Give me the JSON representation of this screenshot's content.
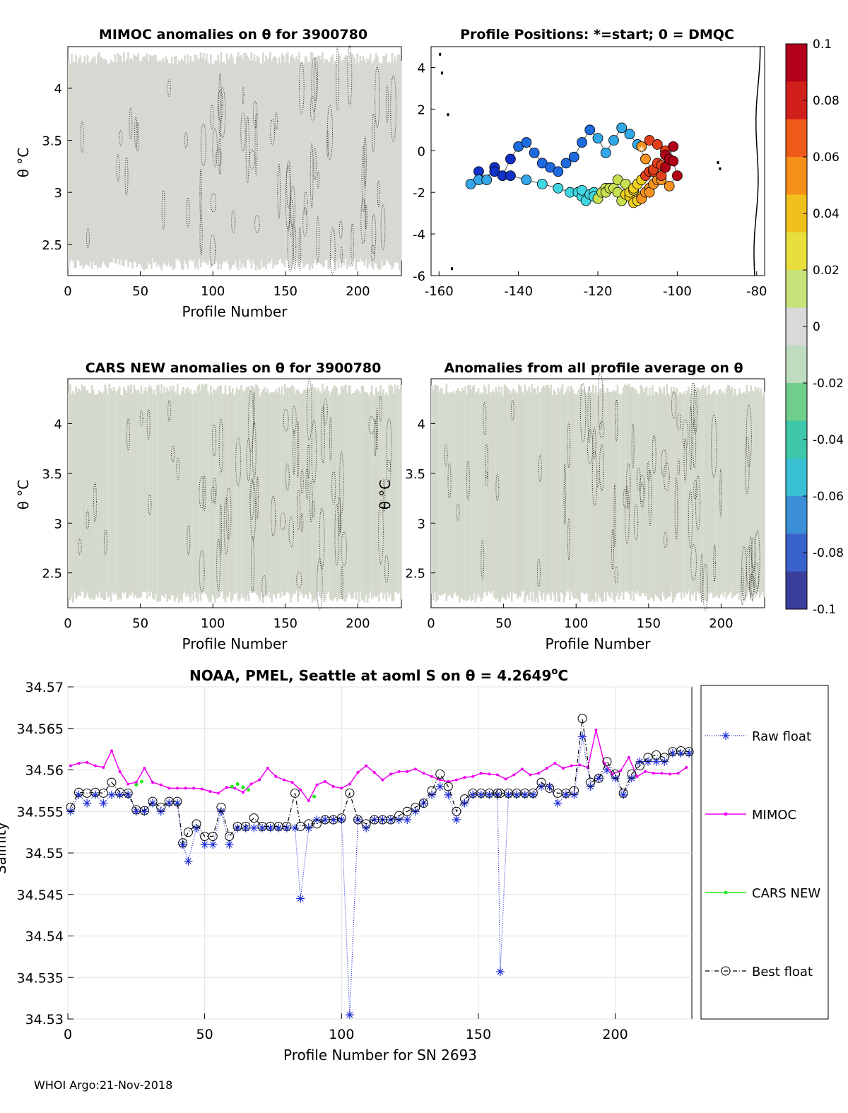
{
  "footer": "WHOI Argo:21-Nov-2018",
  "panels": {
    "mimoc_anom": {
      "title": "MIMOC anomalies on θ  for 3900780",
      "ylabel": "θ °C",
      "xlabel": "Profile Number",
      "xlim": [
        0,
        230
      ],
      "ylim": [
        2.2,
        4.4
      ],
      "xticks": [
        "0",
        "50",
        "100",
        "150",
        "200"
      ],
      "yticks": [
        "2.5",
        "3",
        "3.5",
        "4"
      ]
    },
    "positions": {
      "title": "Profile Positions: *=start; 0 = DMQC",
      "xlim": [
        -162,
        -78
      ],
      "ylim": [
        -6,
        5
      ],
      "xticks": [
        "-160",
        "-140",
        "-120",
        "-100",
        "-80"
      ],
      "yticks": [
        "-6",
        "-4",
        "-2",
        "0",
        "2",
        "4"
      ]
    },
    "cars_anom": {
      "title": "CARS NEW anomalies on θ for 3900780",
      "ylabel": "θ °C",
      "xlabel": "Profile Number",
      "xlim": [
        0,
        230
      ],
      "ylim": [
        2.15,
        4.45
      ],
      "xticks": [
        "0",
        "50",
        "100",
        "150",
        "200"
      ],
      "yticks": [
        "2.5",
        "3",
        "3.5",
        "4"
      ]
    },
    "all_avg_anom": {
      "title": "Anomalies from all profile average on θ",
      "ylabel": "θ °C",
      "xlabel": "Profile Number",
      "xlim": [
        0,
        230
      ],
      "ylim": [
        2.15,
        4.45
      ],
      "xticks": [
        "0",
        "50",
        "100",
        "150",
        "200"
      ],
      "yticks": [
        "2.5",
        "3",
        "3.5",
        "4"
      ]
    }
  },
  "colorbar": {
    "ticks": [
      "0.1",
      "0.08",
      "0.06",
      "0.04",
      "0.02",
      "0",
      "-0.02",
      "-0.04",
      "-0.06",
      "-0.08",
      "-0.1"
    ],
    "colors": [
      "#b2001b",
      "#d11f1c",
      "#ee5a17",
      "#f68f17",
      "#f0c11c",
      "#e8df3c",
      "#c8e27a",
      "#d9d9d9",
      "#bfdcc0",
      "#6fcf8a",
      "#3ec7a9",
      "#39c0d4",
      "#3a8fd6",
      "#3a62cc",
      "#3b3f9c"
    ]
  },
  "chart_data": [
    {
      "type": "heatmap",
      "title": "MIMOC anomalies on θ  for 3900780",
      "xlabel": "Profile Number",
      "ylabel": "θ °C",
      "xlim": [
        0,
        230
      ],
      "ylim": [
        2.2,
        4.4
      ],
      "note_values": "near-zero anomalies (grey) with dotted contours"
    },
    {
      "type": "scatter",
      "title": "Profile Positions: *=start; 0 = DMQC",
      "xlim": [
        -162,
        -78
      ],
      "ylim": [
        -6,
        5
      ],
      "x": [
        -109,
        -107,
        -105,
        -103,
        -101,
        -100,
        -102,
        -104,
        -106,
        -108,
        -110,
        -112,
        -114,
        -116,
        -118,
        -120,
        -122,
        -124,
        -126,
        -128,
        -130,
        -132,
        -134,
        -136,
        -138,
        -140,
        -142,
        -144,
        -146,
        -148,
        -150,
        -152,
        -150,
        -146,
        -142,
        -138,
        -134,
        -130,
        -127,
        -124,
        -121,
        -118,
        -115,
        -112,
        -110,
        -108,
        -106,
        -104,
        -103,
        -105,
        -107,
        -109,
        -111,
        -113,
        -115,
        -117,
        -119,
        -121,
        -123,
        -125,
        -124,
        -122,
        -120,
        -118,
        -116,
        -114,
        -112,
        -110,
        -108,
        -106,
        -104,
        -102,
        -101,
        -103,
        -105,
        -107,
        -109,
        -111,
        -113,
        -111,
        -109,
        -107
      ],
      "y": [
        0.2,
        0.5,
        0.3,
        0.0,
        -0.5,
        -1.2,
        -1.7,
        -1.4,
        -1.0,
        -0.4,
        0.3,
        0.8,
        1.1,
        0.5,
        -0.1,
        0.6,
        1.0,
        0.4,
        -0.3,
        -0.6,
        -1.0,
        -0.8,
        -0.6,
        -0.1,
        0.4,
        0.2,
        -0.4,
        -1.2,
        -0.8,
        -1.4,
        -1.0,
        -1.6,
        -1.4,
        -1.0,
        -1.2,
        -1.4,
        -1.6,
        -1.8,
        -2.0,
        -2.2,
        -2.0,
        -1.8,
        -2.0,
        -2.2,
        -2.4,
        -2.0,
        -1.6,
        -1.2,
        -0.8,
        -1.4,
        -1.8,
        -2.2,
        -1.9,
        -1.6,
        -1.4,
        -1.8,
        -2.0,
        -2.2,
        -2.4,
        -2.0,
        -1.9,
        -2.1,
        -2.3,
        -2.0,
        -1.8,
        -2.4,
        -2.0,
        -1.6,
        -1.2,
        -0.9,
        -0.7,
        -0.4,
        0.2,
        -0.2,
        -0.6,
        -1.0,
        -1.4,
        -1.8,
        -2.1,
        -2.5,
        -2.3,
        -2.0
      ],
      "color_by": "profile order, blue → cyan → yellow → red"
    },
    {
      "type": "heatmap",
      "title": "CARS NEW anomalies on θ for 3900780",
      "xlabel": "Profile Number",
      "ylabel": "θ °C",
      "xlim": [
        0,
        230
      ],
      "ylim": [
        2.15,
        4.45
      ]
    },
    {
      "type": "heatmap",
      "title": "Anomalies from all profile average on θ",
      "xlabel": "Profile Number",
      "ylabel": "θ °C",
      "xlim": [
        0,
        230
      ],
      "ylim": [
        2.15,
        4.45
      ]
    },
    {
      "type": "line",
      "title": "NOAA, PMEL, Seattle at aoml S on θ = 4.2649°C",
      "xlabel": "Profile Number for SN 2693",
      "ylabel": "Salinity",
      "xlim": [
        0,
        228
      ],
      "ylim": [
        34.53,
        34.57
      ],
      "xticks": [
        "0",
        "50",
        "100",
        "150",
        "200"
      ],
      "yticks": [
        "34.53",
        "34.535",
        "34.54",
        "34.545",
        "34.55",
        "34.555",
        "34.56",
        "34.565",
        "34.57"
      ],
      "grid": true,
      "legend_position": "right-outside",
      "series": [
        {
          "name": "Raw float",
          "color": "#1f2fd6",
          "x": [
            1,
            4,
            7,
            10,
            13,
            16,
            19,
            22,
            25,
            28,
            31,
            34,
            37,
            40,
            42,
            44,
            47,
            50,
            53,
            56,
            59,
            62,
            65,
            68,
            71,
            74,
            77,
            80,
            83,
            85,
            88,
            91,
            94,
            97,
            100,
            103,
            106,
            109,
            112,
            115,
            118,
            121,
            124,
            127,
            130,
            133,
            136,
            139,
            142,
            145,
            148,
            151,
            154,
            157,
            158,
            161,
            164,
            167,
            170,
            173,
            176,
            179,
            182,
            185,
            188,
            191,
            194,
            197,
            200,
            203,
            206,
            209,
            212,
            215,
            218,
            221,
            224,
            227
          ],
          "y": [
            34.555,
            34.557,
            34.556,
            34.557,
            34.556,
            34.557,
            34.557,
            34.557,
            34.555,
            34.555,
            34.556,
            34.555,
            34.556,
            34.556,
            34.551,
            34.549,
            34.553,
            34.551,
            34.551,
            34.555,
            34.551,
            34.553,
            34.553,
            34.553,
            34.553,
            34.553,
            34.553,
            34.553,
            34.553,
            34.5445,
            34.553,
            34.554,
            34.554,
            34.554,
            34.554,
            34.5305,
            34.554,
            34.553,
            34.554,
            34.554,
            34.554,
            34.554,
            34.554,
            34.555,
            34.556,
            34.557,
            34.558,
            34.557,
            34.554,
            34.556,
            34.557,
            34.557,
            34.557,
            34.557,
            34.5357,
            34.557,
            34.557,
            34.557,
            34.557,
            34.558,
            34.558,
            34.556,
            34.557,
            34.557,
            34.564,
            34.558,
            34.559,
            34.56,
            34.559,
            34.557,
            34.559,
            34.561,
            34.561,
            34.561,
            34.561,
            34.562,
            34.562,
            34.562
          ]
        },
        {
          "name": "MIMOC",
          "color": "#f000f0",
          "x": [
            1,
            4,
            7,
            10,
            13,
            16,
            19,
            22,
            25,
            28,
            31,
            34,
            37,
            40,
            43,
            46,
            49,
            52,
            55,
            58,
            61,
            64,
            67,
            70,
            73,
            76,
            79,
            82,
            85,
            88,
            91,
            94,
            97,
            100,
            103,
            106,
            109,
            112,
            115,
            118,
            121,
            124,
            127,
            130,
            133,
            136,
            139,
            142,
            145,
            148,
            151,
            154,
            157,
            160,
            163,
            166,
            169,
            172,
            175,
            178,
            181,
            184,
            187,
            190,
            193,
            196,
            199,
            202,
            205,
            208,
            211,
            214,
            217,
            220,
            223,
            226
          ],
          "y": [
            34.5605,
            34.5608,
            34.5609,
            34.5605,
            34.5603,
            34.5623,
            34.5598,
            34.5583,
            34.5585,
            34.5602,
            34.5585,
            34.5582,
            34.5578,
            34.5578,
            34.5578,
            34.5578,
            34.5577,
            34.5574,
            34.5572,
            34.5579,
            34.5578,
            34.5573,
            34.5583,
            34.5588,
            34.5602,
            34.5592,
            34.5588,
            34.5585,
            34.5576,
            34.5563,
            34.5582,
            34.5586,
            34.558,
            34.5578,
            34.5583,
            34.5597,
            34.5605,
            34.5597,
            34.5588,
            34.5595,
            34.5598,
            34.5598,
            34.5601,
            34.5596,
            34.5592,
            34.5588,
            34.5586,
            34.5588,
            34.5591,
            34.5592,
            34.5596,
            34.5595,
            34.5594,
            34.5589,
            34.5594,
            34.5601,
            34.5594,
            34.5596,
            34.5602,
            34.5608,
            34.5602,
            34.5605,
            34.5606,
            34.5603,
            34.5648,
            34.5608,
            34.5595,
            34.5599,
            34.5615,
            34.5592,
            34.5598,
            34.5596,
            34.5596,
            34.5595,
            34.5596,
            34.5603
          ]
        },
        {
          "name": "CARS NEW",
          "color": "#22e822",
          "x": [
            25,
            27,
            60,
            62,
            64,
            66,
            90
          ],
          "y": [
            34.5582,
            34.5586,
            34.558,
            34.5583,
            34.5579,
            34.5576,
            34.5568
          ]
        },
        {
          "name": "Best float",
          "color": "#000000",
          "x": [
            1,
            4,
            7,
            10,
            13,
            16,
            19,
            22,
            25,
            28,
            31,
            34,
            37,
            40,
            42,
            44,
            47,
            50,
            53,
            56,
            59,
            62,
            65,
            68,
            71,
            74,
            77,
            80,
            83,
            85,
            88,
            91,
            94,
            97,
            100,
            103,
            106,
            109,
            112,
            115,
            118,
            121,
            124,
            127,
            130,
            133,
            136,
            139,
            142,
            145,
            148,
            151,
            154,
            157,
            158,
            161,
            164,
            167,
            170,
            173,
            176,
            179,
            182,
            185,
            188,
            191,
            194,
            197,
            200,
            203,
            206,
            209,
            212,
            215,
            218,
            221,
            224,
            227
          ],
          "y": [
            34.5555,
            34.5573,
            34.5572,
            34.5573,
            34.5572,
            34.5585,
            34.5573,
            34.5572,
            34.5552,
            34.5551,
            34.5562,
            34.5555,
            34.5562,
            34.5562,
            34.5512,
            34.5525,
            34.5535,
            34.552,
            34.552,
            34.5555,
            34.552,
            34.5532,
            34.5532,
            34.5542,
            34.5532,
            34.5532,
            34.5532,
            34.5532,
            34.5572,
            34.5532,
            34.5535,
            34.5535,
            34.554,
            34.554,
            34.5542,
            34.5572,
            34.554,
            34.5535,
            34.554,
            34.554,
            34.554,
            34.5545,
            34.555,
            34.5555,
            34.556,
            34.5575,
            34.5595,
            34.558,
            34.555,
            34.5565,
            34.5572,
            34.5572,
            34.5572,
            34.5572,
            34.5572,
            34.5572,
            34.5572,
            34.5572,
            34.5572,
            34.5585,
            34.5578,
            34.5572,
            34.5572,
            34.5575,
            34.5662,
            34.5585,
            34.559,
            34.561,
            34.5595,
            34.5572,
            34.5595,
            34.5605,
            34.5615,
            34.5618,
            34.5615,
            34.5622,
            34.5623,
            34.5622
          ]
        }
      ]
    }
  ],
  "salinity_panel": {
    "title": "NOAA, PMEL, Seattle at aoml S on θ = 4.2649",
    "title_sup": "o",
    "title_unit": "C",
    "ylabel": "Salinity",
    "xlabel": "Profile Number for SN 2693",
    "legend": [
      "Raw float",
      "MIMOC",
      "CARS NEW",
      "Best float"
    ]
  }
}
